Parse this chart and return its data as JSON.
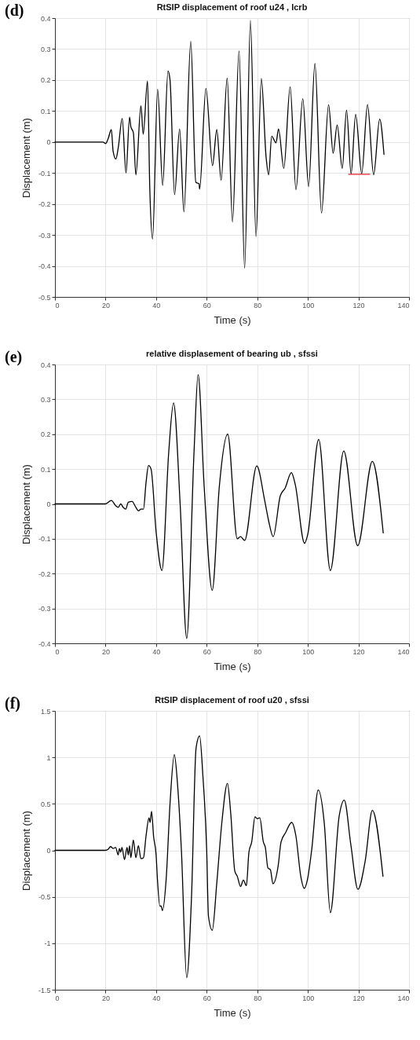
{
  "chart_data": [
    {
      "type": "line",
      "title": "RtSIP displacement of roof u24 , lcrb",
      "xlabel": "Time (s)",
      "ylabel": "Displacement (m)",
      "annotations": [
        "(d)"
      ],
      "xlim": [
        0,
        140
      ],
      "xticks": [
        0,
        20,
        40,
        60,
        80,
        100,
        120,
        140
      ],
      "ylim": [
        -0.5,
        0.4
      ],
      "yticks": [
        -0.5,
        -0.4,
        -0.3,
        -0.2,
        -0.1,
        0,
        0.1,
        0.2,
        0.3,
        0.4
      ],
      "grid": true,
      "series": [
        {
          "color": "#000000",
          "x": [
            0,
            19,
            20,
            21,
            22.3,
            23,
            24.1,
            25,
            26.6,
            28.1,
            29.5,
            30,
            31,
            32,
            34,
            34.9,
            36.6,
            37.5,
            38.6,
            40.6,
            42.6,
            44.7,
            45.5,
            47.3,
            49.3,
            51,
            53.7,
            55.7,
            57,
            57.2,
            59.7,
            62.3,
            64,
            65.7,
            68.1,
            70.2,
            72.8,
            75,
            77.3,
            79.5,
            81.6,
            83.5,
            84.5,
            85.7,
            87.4,
            88.4,
            90.5,
            93,
            95.3,
            98,
            100.3,
            102.8,
            105.4,
            108.2,
            110,
            111.6,
            113.6,
            115.3,
            117.1,
            118.9,
            121.3,
            123.6,
            126,
            128.4,
            130.1
          ],
          "values": [
            0,
            0,
            -0.005,
            0.01,
            0.04,
            -0.03,
            -0.055,
            -0.02,
            0.076,
            -0.1,
            0.08,
            0.05,
            0.03,
            -0.106,
            0.117,
            0.025,
            0.197,
            -0.15,
            -0.313,
            0.17,
            -0.14,
            0.229,
            0.2,
            -0.17,
            0.042,
            -0.225,
            0.325,
            -0.13,
            -0.135,
            -0.152,
            0.173,
            -0.076,
            0.04,
            -0.123,
            0.206,
            -0.258,
            0.294,
            -0.407,
            0.392,
            -0.305,
            0.205,
            -0.05,
            -0.106,
            0.019,
            -0.003,
            0.042,
            -0.085,
            0.178,
            -0.154,
            0.14,
            -0.144,
            0.253,
            -0.229,
            0.12,
            -0.036,
            0.055,
            -0.085,
            0.103,
            -0.103,
            0.089,
            -0.102,
            0.121,
            -0.106,
            0.074,
            -0.04
          ]
        },
        {
          "color": "#e8202a",
          "x": [
            116.1,
            124.5
          ],
          "values": [
            -0.104,
            -0.104
          ]
        }
      ]
    },
    {
      "type": "line",
      "title": "relative displasement of bearing ub , sfssi",
      "xlabel": "Time (s)",
      "ylabel": "Displacement (m)",
      "annotations": [
        "(e)"
      ],
      "xlim": [
        0,
        140
      ],
      "xticks": [
        0,
        20,
        40,
        60,
        80,
        100,
        120,
        140
      ],
      "ylim": [
        -0.4,
        0.4
      ],
      "yticks": [
        -0.4,
        -0.3,
        -0.2,
        -0.1,
        0,
        0.1,
        0.2,
        0.3,
        0.4
      ],
      "grid": true,
      "series": [
        {
          "color": "#000000",
          "x": [
            0,
            20,
            22.3,
            24,
            25,
            26,
            27,
            28,
            29,
            30.5,
            32,
            33,
            34,
            35,
            36,
            37,
            38,
            40,
            42.3,
            45,
            46.9,
            49.5,
            52.1,
            55,
            56.6,
            59,
            62.2,
            65,
            68.3,
            72.1,
            73.4,
            75,
            79.8,
            82.9,
            84.5,
            86.3,
            89.1,
            91,
            93.5,
            95,
            98.7,
            100,
            104.3,
            108.9,
            114.2,
            119.7,
            125.5,
            129.8
          ],
          "values": [
            0,
            0,
            0.01,
            -0.005,
            -0.01,
            0,
            -0.01,
            -0.015,
            0.005,
            0.007,
            -0.01,
            -0.02,
            -0.015,
            -0.015,
            0.06,
            0.11,
            0.1,
            -0.08,
            -0.191,
            0.15,
            0.29,
            0,
            -0.386,
            0.15,
            0.371,
            0.05,
            -0.248,
            0.05,
            0.2,
            -0.1,
            -0.094,
            -0.105,
            0.109,
            0.011,
            -0.049,
            -0.094,
            0.023,
            0.045,
            0.09,
            0.056,
            -0.113,
            -0.086,
            0.185,
            -0.191,
            0.152,
            -0.12,
            0.122,
            -0.083
          ]
        }
      ]
    },
    {
      "type": "line",
      "title": "RtSIP displacement of roof u20 , sfssi",
      "xlabel": "Time (s)",
      "ylabel": "Displacement (m)",
      "annotations": [
        "(f)"
      ],
      "xlim": [
        0,
        140
      ],
      "xticks": [
        0,
        20,
        40,
        60,
        80,
        100,
        120,
        140
      ],
      "ylim": [
        -1.5,
        1.5
      ],
      "yticks": [
        -1.5,
        -1,
        -0.5,
        0,
        0.5,
        1,
        1.5
      ],
      "grid": true,
      "series": [
        {
          "color": "#000000",
          "x": [
            0,
            20,
            21,
            22,
            23,
            24,
            25,
            25.5,
            26,
            26.5,
            27.5,
            28.5,
            29,
            29.5,
            30,
            31,
            32,
            33,
            34,
            35,
            36,
            37.2,
            37.6,
            38.2,
            39,
            40,
            40.5,
            41.5,
            42,
            42.5,
            44,
            45.5,
            47.2,
            48.5,
            50,
            52.1,
            54,
            55.8,
            57.2,
            58.5,
            60,
            60.7,
            62.2,
            64,
            66,
            68.2,
            69.5,
            71.1,
            72.1,
            73.4,
            74.5,
            75.7,
            76.7,
            77.8,
            79.1,
            80,
            81,
            82.4,
            83.2,
            84.2,
            85.2,
            86.2,
            88.3,
            89.4,
            91.2,
            93.6,
            95.3,
            97.2,
            98.6,
            99.8,
            101.5,
            104.1,
            106.5,
            108.9,
            112.4,
            114.4,
            117,
            119.8,
            122.7,
            125.5,
            129.7
          ],
          "values": [
            0,
            0,
            0.01,
            0.04,
            0.02,
            0.03,
            -0.05,
            0.02,
            -0.02,
            0.03,
            -0.1,
            0.03,
            -0.05,
            0.05,
            -0.08,
            0.11,
            -0.08,
            0.05,
            -0.09,
            -0.08,
            0.15,
            0.35,
            0.3,
            0.42,
            0.15,
            -0.05,
            -0.3,
            -0.6,
            -0.6,
            -0.65,
            -0.3,
            0.5,
            1.03,
            0.7,
            0,
            -1.37,
            -0.5,
            1.1,
            1.23,
            0.8,
            0,
            -0.71,
            -0.86,
            -0.35,
            0.3,
            0.72,
            0.4,
            -0.22,
            -0.28,
            -0.39,
            -0.32,
            -0.38,
            -0.02,
            0.09,
            0.36,
            0.34,
            0.35,
            0.09,
            0.03,
            -0.19,
            -0.21,
            -0.36,
            -0.16,
            0.09,
            0.19,
            0.3,
            0.15,
            -0.28,
            -0.41,
            -0.32,
            0,
            0.65,
            0.29,
            -0.67,
            0.37,
            0.54,
            0.06,
            -0.42,
            -0.11,
            0.43,
            -0.28
          ]
        }
      ]
    }
  ]
}
